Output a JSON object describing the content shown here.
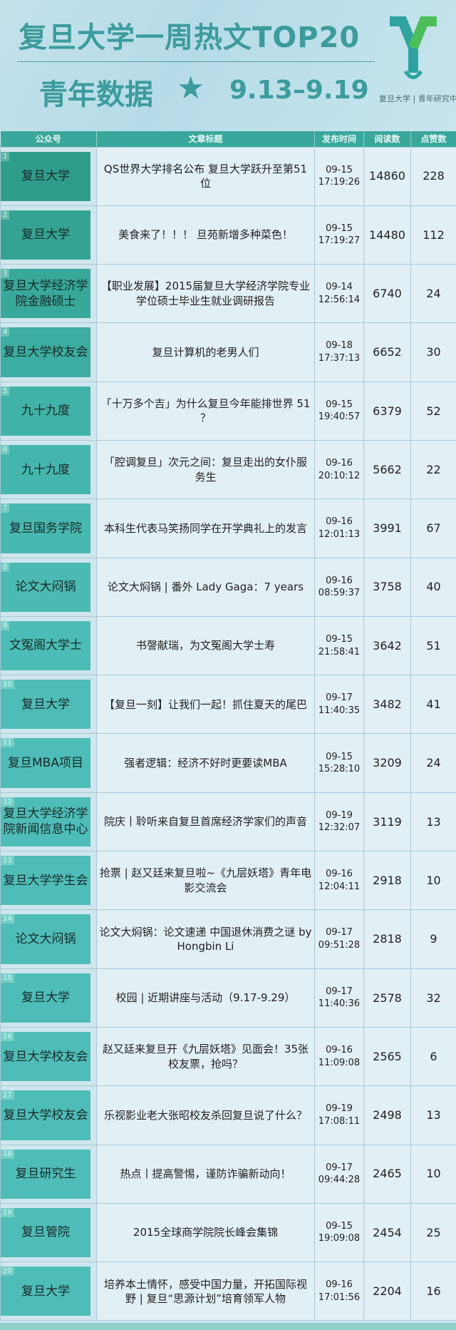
{
  "header": {
    "title": "复旦大学一周热文TOP20",
    "subtitle": "青年数据",
    "star_icon": "star-icon",
    "dates": "9.13–9.19",
    "logo_text": "复旦大学 | 青年研究中心"
  },
  "colors": {
    "accent": "#3aa79c",
    "background": "#cfe6ee"
  },
  "table": {
    "columns": [
      "公众号",
      "文章标题",
      "发布时间",
      "阅读数",
      "点赞数"
    ],
    "rows": [
      {
        "rank": "1",
        "account": "复旦大学",
        "title": "QS世界大学排名公布  复旦大学跃升至第51位",
        "date": "09-15",
        "time": "17:19:26",
        "reads": "14860",
        "likes": "228"
      },
      {
        "rank": "2",
        "account": "复旦大学",
        "title": "美食来了！！！ 旦苑新增多种菜色！",
        "date": "09-15",
        "time": "17:19:27",
        "reads": "14480",
        "likes": "112"
      },
      {
        "rank": "3",
        "account": "复旦大学经济学院金融硕士",
        "title": "【职业发展】2015届复旦大学经济学院专业学位硕士毕业生就业调研报告",
        "date": "09-14",
        "time": "12:56:14",
        "reads": "6740",
        "likes": "24"
      },
      {
        "rank": "4",
        "account": "复旦大学校友会",
        "title": "复旦计算机的老男人们",
        "date": "09-18",
        "time": "17:37:13",
        "reads": "6652",
        "likes": "30"
      },
      {
        "rank": "5",
        "account": "九十九度",
        "title": "「十万多个吉」为什么复旦今年能排世界 51 ？",
        "date": "09-15",
        "time": "19:40:57",
        "reads": "6379",
        "likes": "52"
      },
      {
        "rank": "6",
        "account": "九十九度",
        "title": "「腔调复旦」次元之间：复旦走出的女仆服务生",
        "date": "09-16",
        "time": "20:10:12",
        "reads": "5662",
        "likes": "22"
      },
      {
        "rank": "7",
        "account": "复旦国务学院",
        "title": "本科生代表马笑扬同学在开学典礼上的发言",
        "date": "09-16",
        "time": "12:01:13",
        "reads": "3991",
        "likes": "67"
      },
      {
        "rank": "8",
        "account": "论文大闷锅",
        "title": "论文大焖锅 | 番外 Lady Gaga：7 years",
        "date": "09-16",
        "time": "08:59:37",
        "reads": "3758",
        "likes": "40"
      },
      {
        "rank": "9",
        "account": "文冤阁大学士",
        "title": "书謦献瑞，为文冤阁大学士寿",
        "date": "09-15",
        "time": "21:58:41",
        "reads": "3642",
        "likes": "51"
      },
      {
        "rank": "10",
        "account": "复旦大学",
        "title": "【复旦一刻】让我们一起！抓住夏天的尾巴",
        "date": "09-17",
        "time": "11:40:35",
        "reads": "3482",
        "likes": "41"
      },
      {
        "rank": "11",
        "account": "复旦MBA项目",
        "title": "强者逻辑：经济不好时更要读MBA",
        "date": "09-15",
        "time": "15:28:10",
        "reads": "3209",
        "likes": "24"
      },
      {
        "rank": "12",
        "account": "复旦大学经济学院新闻信息中心",
        "title": "院庆丨聆听来自复旦首席经济学家们的声音",
        "date": "09-19",
        "time": "12:32:07",
        "reads": "3119",
        "likes": "13"
      },
      {
        "rank": "13",
        "account": "复旦大学学生会",
        "title": "抢票 | 赵又廷来复旦啦~《九层妖塔》青年电影交流会",
        "date": "09-16",
        "time": "12:04:11",
        "reads": "2918",
        "likes": "10"
      },
      {
        "rank": "14",
        "account": "论文大闷锅",
        "title": "论文大焖锅：论文速递 中国退休消费之谜 by Hongbin Li",
        "date": "09-17",
        "time": "09:51:28",
        "reads": "2818",
        "likes": "9"
      },
      {
        "rank": "15",
        "account": "复旦大学",
        "title": "校园 | 近期讲座与活动（9.17-9.29）",
        "date": "09-17",
        "time": "11:40:36",
        "reads": "2578",
        "likes": "32"
      },
      {
        "rank": "16",
        "account": "复旦大学校友会",
        "title": "赵又廷来复旦开《九层妖塔》见面会！35张校友票，抢吗？",
        "date": "09-16",
        "time": "11:09:08",
        "reads": "2565",
        "likes": "6"
      },
      {
        "rank": "17",
        "account": "复旦大学校友会",
        "title": "乐视影业老大张昭校友杀回复旦说了什么？",
        "date": "09-19",
        "time": "17:08:11",
        "reads": "2498",
        "likes": "13"
      },
      {
        "rank": "18",
        "account": "复旦研究生",
        "title": "热点丨提高警惕，谨防诈骗新动向！",
        "date": "09-17",
        "time": "09:44:28",
        "reads": "2465",
        "likes": "10"
      },
      {
        "rank": "19",
        "account": "复旦管院",
        "title": "2015全球商学院院长峰会集锦",
        "date": "09-15",
        "time": "19:09:08",
        "reads": "2454",
        "likes": "25"
      },
      {
        "rank": "20",
        "account": "复旦大学",
        "title": "培养本土情怀，感受中国力量，开拓国际视野 | 复旦“思源计划”培育领军人物",
        "date": "09-16",
        "time": "17:01:56",
        "reads": "2204",
        "likes": "16"
      }
    ]
  }
}
